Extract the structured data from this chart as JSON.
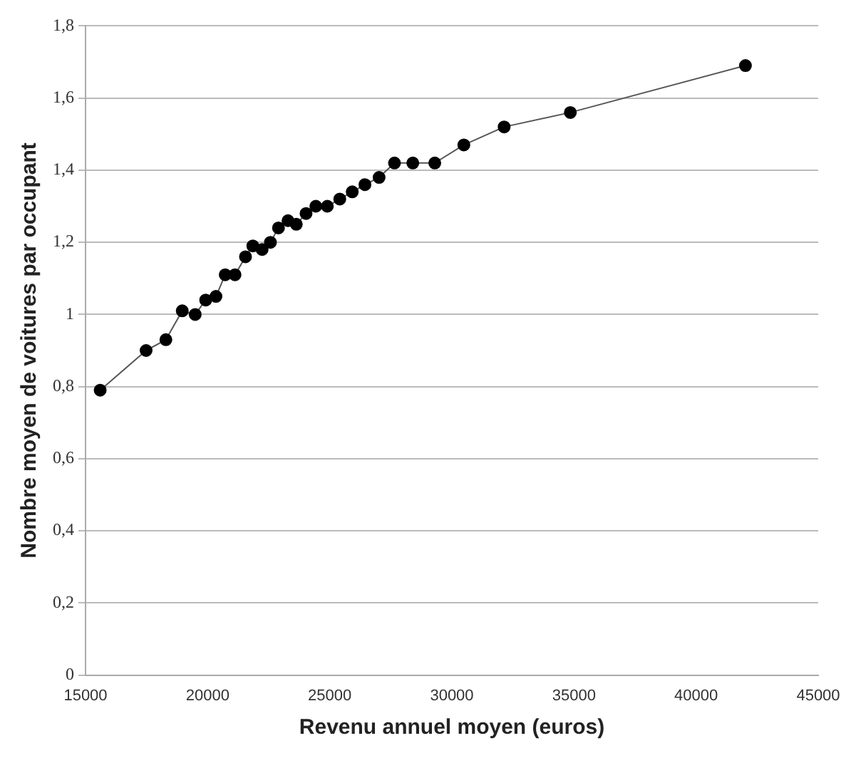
{
  "chart_data": {
    "type": "line",
    "xlabel": "Revenu annuel moyen (euros)",
    "ylabel": "Nombre moyen de voitures par occupant",
    "x": [
      15600,
      17480,
      18290,
      18960,
      19490,
      19920,
      20340,
      20720,
      21120,
      21550,
      21850,
      22230,
      22570,
      22900,
      23290,
      23630,
      24030,
      24430,
      24900,
      25410,
      25920,
      26440,
      27020,
      27650,
      28400,
      29300,
      30490,
      32140,
      34850,
      42020
    ],
    "series": [
      {
        "color": "#000000",
        "values": [
          0.79,
          0.9,
          0.93,
          1.01,
          1.0,
          1.04,
          1.05,
          1.11,
          1.11,
          1.16,
          1.19,
          1.18,
          1.2,
          1.24,
          1.26,
          1.25,
          1.28,
          1.3,
          1.3,
          1.32,
          1.34,
          1.36,
          1.38,
          1.42,
          1.42,
          1.42,
          1.47,
          1.52,
          1.56,
          1.69
        ]
      }
    ],
    "xlim": [
      15000,
      45000
    ],
    "xticks": [
      15000,
      20000,
      25000,
      30000,
      35000,
      40000,
      45000
    ],
    "ylim": [
      0,
      1.8
    ],
    "yticks": [
      {
        "value": 0,
        "label": "0"
      },
      {
        "value": 0.2,
        "label": "0,2"
      },
      {
        "value": 0.4,
        "label": "0,4"
      },
      {
        "value": 0.6,
        "label": "0,6"
      },
      {
        "value": 0.8,
        "label": "0,8"
      },
      {
        "value": 1,
        "label": "1"
      },
      {
        "value": 1.2,
        "label": "1,2"
      },
      {
        "value": 1.4,
        "label": "1,4"
      },
      {
        "value": 1.6,
        "label": "1,6"
      },
      {
        "value": 1.8,
        "label": "1,8"
      }
    ],
    "grid": "y",
    "legend": false,
    "marker": "circle",
    "line_style": "solid"
  }
}
